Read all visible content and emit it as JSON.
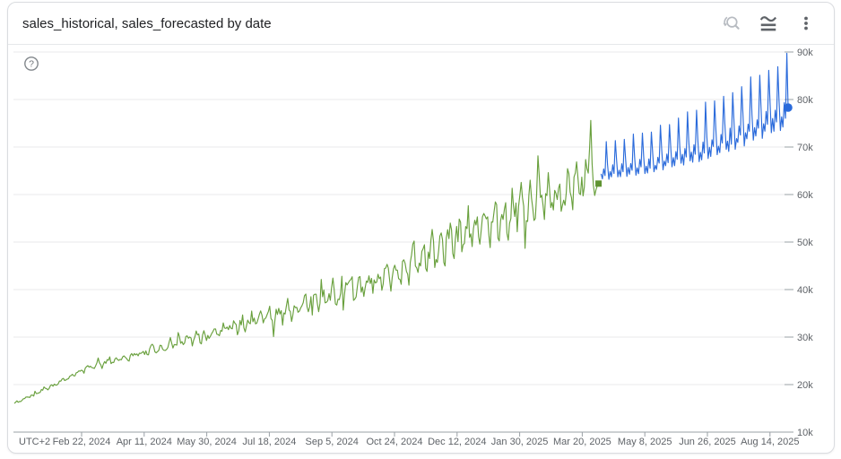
{
  "header": {
    "title": "sales_historical, sales_forecasted by date",
    "actions": [
      {
        "label": "Reset zoom",
        "icon": "reset-zoom-icon",
        "state": "disabled"
      },
      {
        "label": "Chart style",
        "icon": "smoothed-line-chart-icon",
        "state": "enabled"
      },
      {
        "label": "More options",
        "icon": "kebab-menu-icon",
        "state": "enabled"
      }
    ]
  },
  "help": {
    "glyph": "?"
  },
  "chart_data": {
    "type": "line",
    "title": "sales_historical, sales_forecasted by date",
    "noise_seed": 11,
    "legend": "none",
    "x_axis": {
      "corner_label": "UTC+2",
      "tick_labels": [
        "Feb 22, 2024",
        "Apr 11, 2024",
        "May 30, 2024",
        "Jul 18, 2024",
        "Sep 5, 2024",
        "Oct 24, 2024",
        "Dec 12, 2024",
        "Jan 30, 2025",
        "Mar 20, 2025",
        "May 8, 2025",
        "Jun 26, 2025",
        "Aug 14, 2025"
      ],
      "tick_interval_days": 49
    },
    "y_axis": {
      "tick_labels": [
        "10k",
        "20k",
        "30k",
        "40k",
        "50k",
        "60k",
        "70k",
        "80k",
        "90k"
      ],
      "min": 10000,
      "max": 90000,
      "position": "right",
      "grid": true
    },
    "series": [
      {
        "name": "sales_historical",
        "color": "#69a03d",
        "style": "noisy daily line, rising trend with growing weekly volatility",
        "start_day": 0,
        "end_day": 453,
        "trend": [
          [
            0,
            16000
          ],
          [
            57,
            23500
          ],
          [
            106,
            27200
          ],
          [
            155,
            31000
          ],
          [
            204,
            34800
          ],
          [
            253,
            39000
          ],
          [
            302,
            44500
          ],
          [
            351,
            52000
          ],
          [
            400,
            58500
          ],
          [
            430,
            60500
          ],
          [
            444,
            62000
          ],
          [
            453,
            62300
          ]
        ],
        "amplitude": [
          [
            0,
            350
          ],
          [
            57,
            800
          ],
          [
            106,
            1300
          ],
          [
            155,
            1900
          ],
          [
            204,
            2600
          ],
          [
            253,
            3300
          ],
          [
            302,
            4300
          ],
          [
            351,
            5300
          ],
          [
            400,
            6300
          ],
          [
            453,
            6600
          ]
        ],
        "weekly_pattern": [
          0.15,
          0.6,
          1.0,
          0.2,
          -0.55,
          -1.0,
          -0.3
        ],
        "weekly_weight": 0.55,
        "random_weight": 1.0,
        "spike_chance": 0.06,
        "spike_size": 0.9,
        "overrides": [
          [
            445,
            64500
          ],
          [
            446,
            69500
          ],
          [
            447,
            75600
          ],
          [
            448,
            66500
          ],
          [
            449,
            62000
          ],
          [
            450,
            59800
          ],
          [
            451,
            61000
          ],
          [
            452,
            61800
          ],
          [
            453,
            62300
          ]
        ],
        "end_marker": {
          "shape": "square",
          "value": 62300,
          "color": "#5f9331"
        }
      },
      {
        "name": "sales_forecasted",
        "color": "#2b6bdb",
        "style": "weekly sawtooth forecast, sharp peaks, rising trend",
        "start_day": 455,
        "end_day": 600,
        "trend": [
          [
            455,
            66500
          ],
          [
            498,
            69000
          ],
          [
            547,
            74000
          ],
          [
            596,
            80500
          ],
          [
            600,
            82000
          ]
        ],
        "amplitude": [
          [
            455,
            4000
          ],
          [
            498,
            4800
          ],
          [
            547,
            6500
          ],
          [
            600,
            7600
          ]
        ],
        "weekly_pattern": [
          -0.55,
          -0.8,
          -0.25,
          -0.6,
          1.0,
          -0.05,
          -0.85
        ],
        "weekly_weight": 1.0,
        "random_weight": 0.18,
        "spike_chance": 0,
        "spike_size": 0,
        "overrides": [
          [
            600,
            78300
          ]
        ],
        "end_marker": {
          "shape": "circle",
          "value": 78300,
          "color": "#2b6bdb"
        }
      }
    ],
    "key_points": {
      "historical_start_value": 16000,
      "historical_end_value": 62300,
      "historical_max_spike": 75600,
      "forecast_start_value": 66500,
      "forecast_peak_value": 89500,
      "forecast_end_value": 78300
    },
    "colors": {
      "gridline": "#e8e9eb",
      "axis_line": "#9aa0a6",
      "axis_text": "#5f6368",
      "historical": "#69a03d",
      "forecast": "#2b6bdb"
    }
  }
}
